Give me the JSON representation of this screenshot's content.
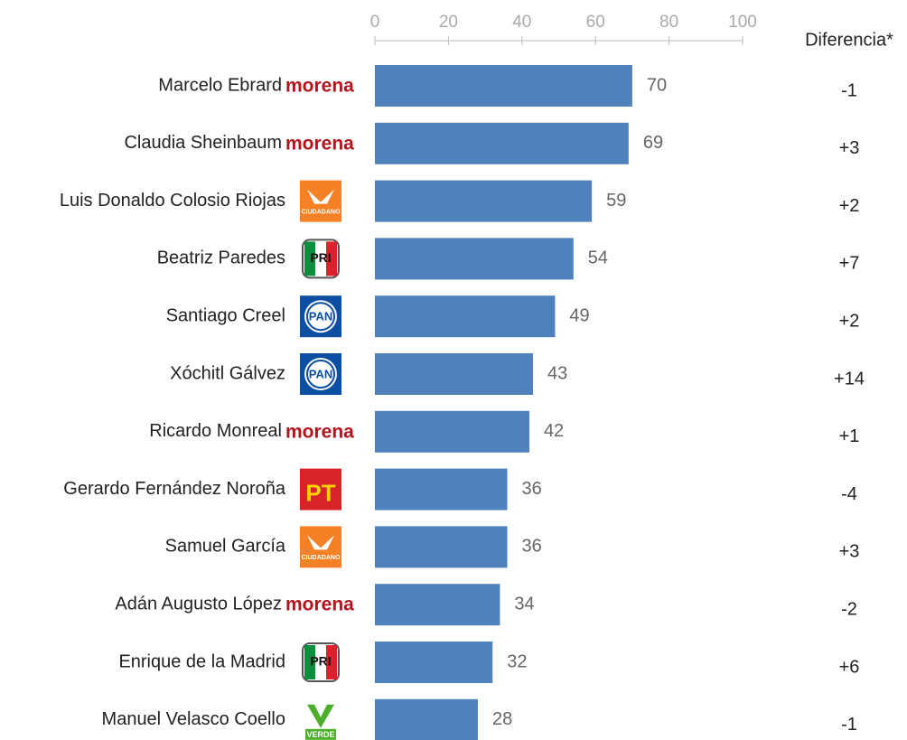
{
  "chart_data": {
    "type": "bar",
    "orientation": "horizontal",
    "categories": [
      "Marcelo Ebrard",
      "Claudia Sheinbaum",
      "Luis Donaldo Colosio Riojas",
      "Beatriz Paredes",
      "Santiago Creel",
      "Xóchitl Gálvez",
      "Ricardo Monreal",
      "Gerardo Fernández Noroña",
      "Samuel García",
      "Adán Augusto López",
      "Enrique de la Madrid",
      "Manuel Velasco Coello"
    ],
    "values": [
      70,
      69,
      59,
      54,
      49,
      43,
      42,
      36,
      36,
      34,
      32,
      28
    ],
    "color": "#4f81bd",
    "xlim": [
      0,
      100
    ],
    "xticks": [
      0,
      20,
      40,
      60,
      80,
      100
    ],
    "parties": [
      "morena",
      "morena",
      "CIUDADANO",
      "PRI",
      "PAN",
      "PAN",
      "morena",
      "PT",
      "CIUDADANO",
      "morena",
      "PRI",
      "VERDE"
    ],
    "difference_header": "Diferencia*",
    "differences": [
      "-1",
      "+3",
      "+2",
      "+7",
      "+2",
      "+14",
      "+1",
      "-4",
      "+3",
      "-2",
      "+6",
      "-1"
    ]
  }
}
